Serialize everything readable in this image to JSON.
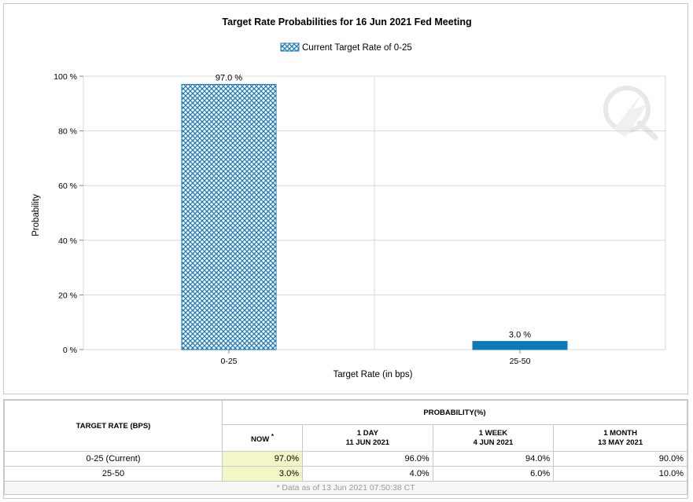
{
  "colors": {
    "bar_pattern": "#1a78b4",
    "bar_solid": "#0a7ab8",
    "grid": "#d8d8d8",
    "now_cell": "#f4f6c8"
  },
  "watermark_icon": "lightning-q-logo",
  "chart_data": {
    "type": "bar",
    "title": "Target Rate Probabilities for 16 Jun 2021 Fed Meeting",
    "legend": "Current Target Rate of 0-25",
    "legend_position": "top-center",
    "categories": [
      "0-25",
      "25-50"
    ],
    "values": [
      97.0,
      3.0
    ],
    "data_labels": [
      "97.0 %",
      "3.0 %"
    ],
    "bar_styles": [
      "crosshatch",
      "solid"
    ],
    "xlabel": "Target Rate (in bps)",
    "ylabel": "Probability",
    "ylim": [
      0,
      100
    ],
    "yticks": [
      0,
      20,
      40,
      60,
      80,
      100
    ],
    "ytick_labels": [
      "0 %",
      "20 %",
      "40 %",
      "60 %",
      "80 %",
      "100 %"
    ],
    "grid": true
  },
  "table": {
    "rate_header": "TARGET RATE (BPS)",
    "prob_header": "PROBABILITY(%)",
    "now_label": "NOW",
    "now_mark": "*",
    "periods": [
      {
        "label": "1 DAY",
        "date": "11 JUN 2021"
      },
      {
        "label": "1 WEEK",
        "date": "4 JUN 2021"
      },
      {
        "label": "1 MONTH",
        "date": "13 MAY 2021"
      }
    ],
    "rows": [
      {
        "rate": "0-25 (Current)",
        "now": "97.0%",
        "d1": "96.0%",
        "w1": "94.0%",
        "m1": "90.0%"
      },
      {
        "rate": "25-50",
        "now": "3.0%",
        "d1": "4.0%",
        "w1": "6.0%",
        "m1": "10.0%"
      }
    ],
    "footnote": "* Data as of 13 Jun 2021 07:50:38 CT"
  }
}
